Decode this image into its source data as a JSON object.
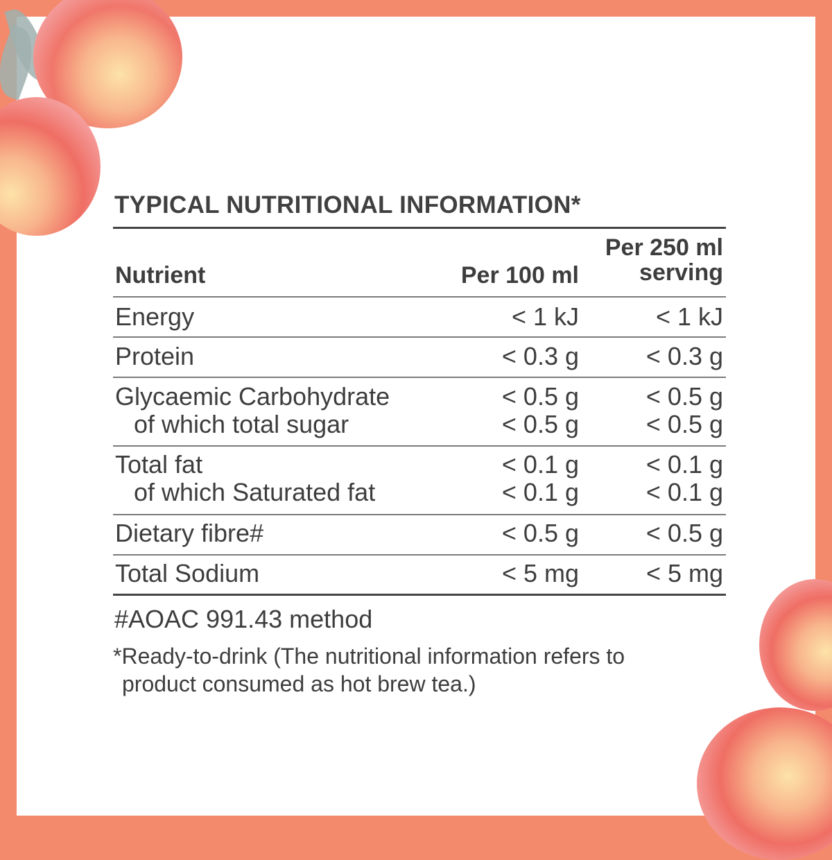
{
  "colors": {
    "border": "#f48a6c",
    "text": "#3d3d3d",
    "flower": "#f07a6a"
  },
  "decorations": [
    "watercolor-flowers-top-left",
    "watercolor-flowers-bottom-right"
  ],
  "title": "TYPICAL NUTRITIONAL INFORMATION*",
  "table": {
    "headers": {
      "nutrient": "Nutrient",
      "per100": "Per 100 ml",
      "per250_line1": "Per 250 ml",
      "per250_line2": "serving"
    },
    "rows": [
      {
        "name": "Energy",
        "per100": "< 1 kJ",
        "per250": "< 1 kJ"
      },
      {
        "name": "Protein",
        "per100": "< 0.3 g",
        "per250": "< 0.3 g"
      },
      {
        "name": "Glycaemic Carbohydrate",
        "per100": "< 0.5 g",
        "per250": "< 0.5 g",
        "sub": {
          "name": "of which total sugar",
          "per100": "< 0.5 g",
          "per250": "< 0.5 g"
        }
      },
      {
        "name": "Total fat",
        "per100": "< 0.1 g",
        "per250": "< 0.1 g",
        "sub": {
          "name": "of which Saturated fat",
          "per100": "< 0.1 g",
          "per250": "< 0.1 g"
        }
      },
      {
        "name": "Dietary fibre#",
        "per100": "< 0.5 g",
        "per250": "< 0.5 g"
      },
      {
        "name": "Total Sodium",
        "per100": "< 5 mg",
        "per250": "< 5 mg"
      }
    ]
  },
  "footnotes": {
    "method": "#AOAC 991.43 method",
    "rtd_line1": "*Ready-to-drink (The nutritional information refers to",
    "rtd_line2": "product consumed as hot brew tea.)"
  }
}
